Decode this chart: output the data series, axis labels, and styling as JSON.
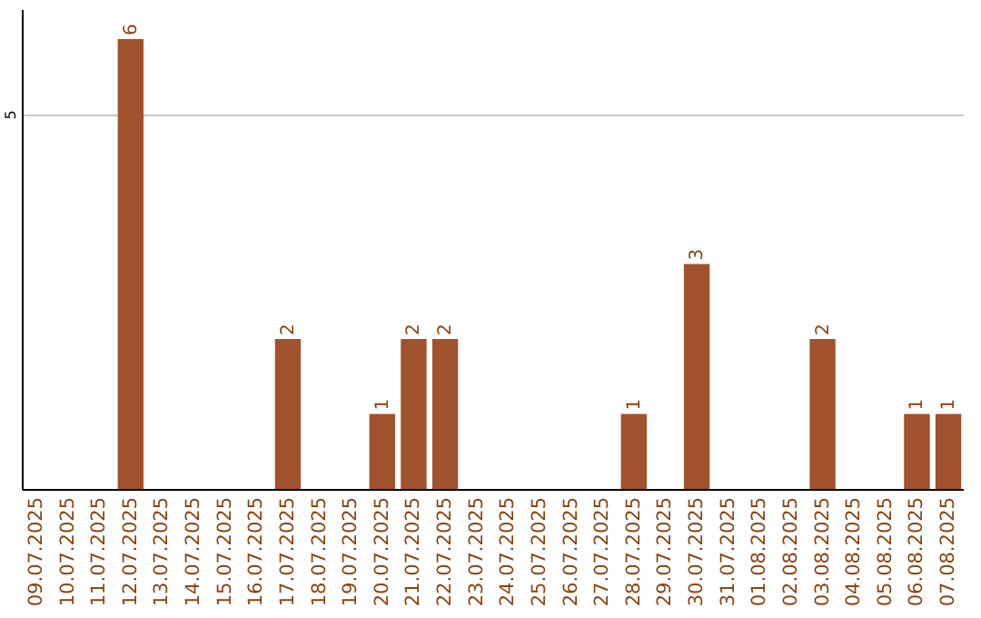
{
  "chart_data": {
    "type": "bar",
    "categories": [
      "09.07.2025",
      "10.07.2025",
      "11.07.2025",
      "12.07.2025",
      "13.07.2025",
      "14.07.2025",
      "15.07.2025",
      "16.07.2025",
      "17.07.2025",
      "18.07.2025",
      "19.07.2025",
      "20.07.2025",
      "21.07.2025",
      "22.07.2025",
      "23.07.2025",
      "24.07.2025",
      "25.07.2025",
      "26.07.2025",
      "27.07.2025",
      "28.07.2025",
      "29.07.2025",
      "30.07.2025",
      "31.07.2025",
      "01.08.2025",
      "02.08.2025",
      "03.08.2025",
      "04.08.2025",
      "05.08.2025",
      "06.08.2025",
      "07.08.2025"
    ],
    "values": [
      null,
      null,
      null,
      6,
      null,
      null,
      null,
      null,
      2,
      null,
      null,
      1,
      2,
      2,
      null,
      null,
      null,
      null,
      null,
      1,
      null,
      3,
      null,
      null,
      null,
      2,
      null,
      null,
      1,
      1
    ],
    "value_labels": [
      null,
      null,
      null,
      "6",
      null,
      null,
      null,
      null,
      "2",
      null,
      null,
      "1",
      "2",
      "2",
      null,
      null,
      null,
      null,
      null,
      "1",
      null,
      "3",
      null,
      null,
      null,
      "2",
      null,
      null,
      "1",
      "1"
    ],
    "color": "#a0522d",
    "ylim": [
      0,
      6.4
    ],
    "yticks": [
      5
    ],
    "grid": "y"
  }
}
